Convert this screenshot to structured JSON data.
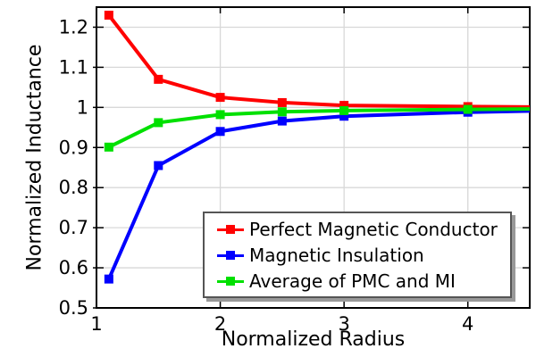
{
  "chart_data": {
    "type": "line",
    "title": "",
    "xlabel": "Normalized Radius",
    "ylabel": "Normalized Inductance",
    "xlim": [
      1,
      4.5
    ],
    "ylim": [
      0.5,
      1.25
    ],
    "xticks": [
      1,
      2,
      3,
      4
    ],
    "xtick_labels": [
      "1",
      "2",
      "3",
      "4"
    ],
    "yticks": [
      0.5,
      0.6,
      0.7,
      0.8,
      0.9,
      1.0,
      1.1,
      1.2
    ],
    "ytick_labels": [
      "0.5",
      "0.6",
      "0.7",
      "0.8",
      "0.9",
      "1",
      "1.1",
      "1.2"
    ],
    "grid": true,
    "legend_position": "inside-bottom-right",
    "marker": "square",
    "marker_on_last_point": false,
    "x": [
      1.1,
      1.5,
      2,
      2.5,
      3,
      4,
      4.5
    ],
    "series": [
      {
        "name": "Perfect Magnetic Conductor",
        "color": "#ff0000",
        "values": [
          1.23,
          1.07,
          1.025,
          1.012,
          1.005,
          1.002,
          1.001
        ]
      },
      {
        "name": "Magnetic Insulation",
        "color": "#0000ff",
        "values": [
          0.572,
          0.855,
          0.94,
          0.966,
          0.978,
          0.988,
          0.991
        ]
      },
      {
        "name": "Average of PMC and MI",
        "color": "#00e000",
        "values": [
          0.901,
          0.962,
          0.982,
          0.989,
          0.992,
          0.995,
          0.996
        ]
      }
    ],
    "colors": {
      "grid": "#d8d8d8",
      "axis": "#000000",
      "text": "#000000",
      "legend_border": "#555555",
      "legend_shadow": "#999999",
      "background": "#ffffff"
    }
  }
}
